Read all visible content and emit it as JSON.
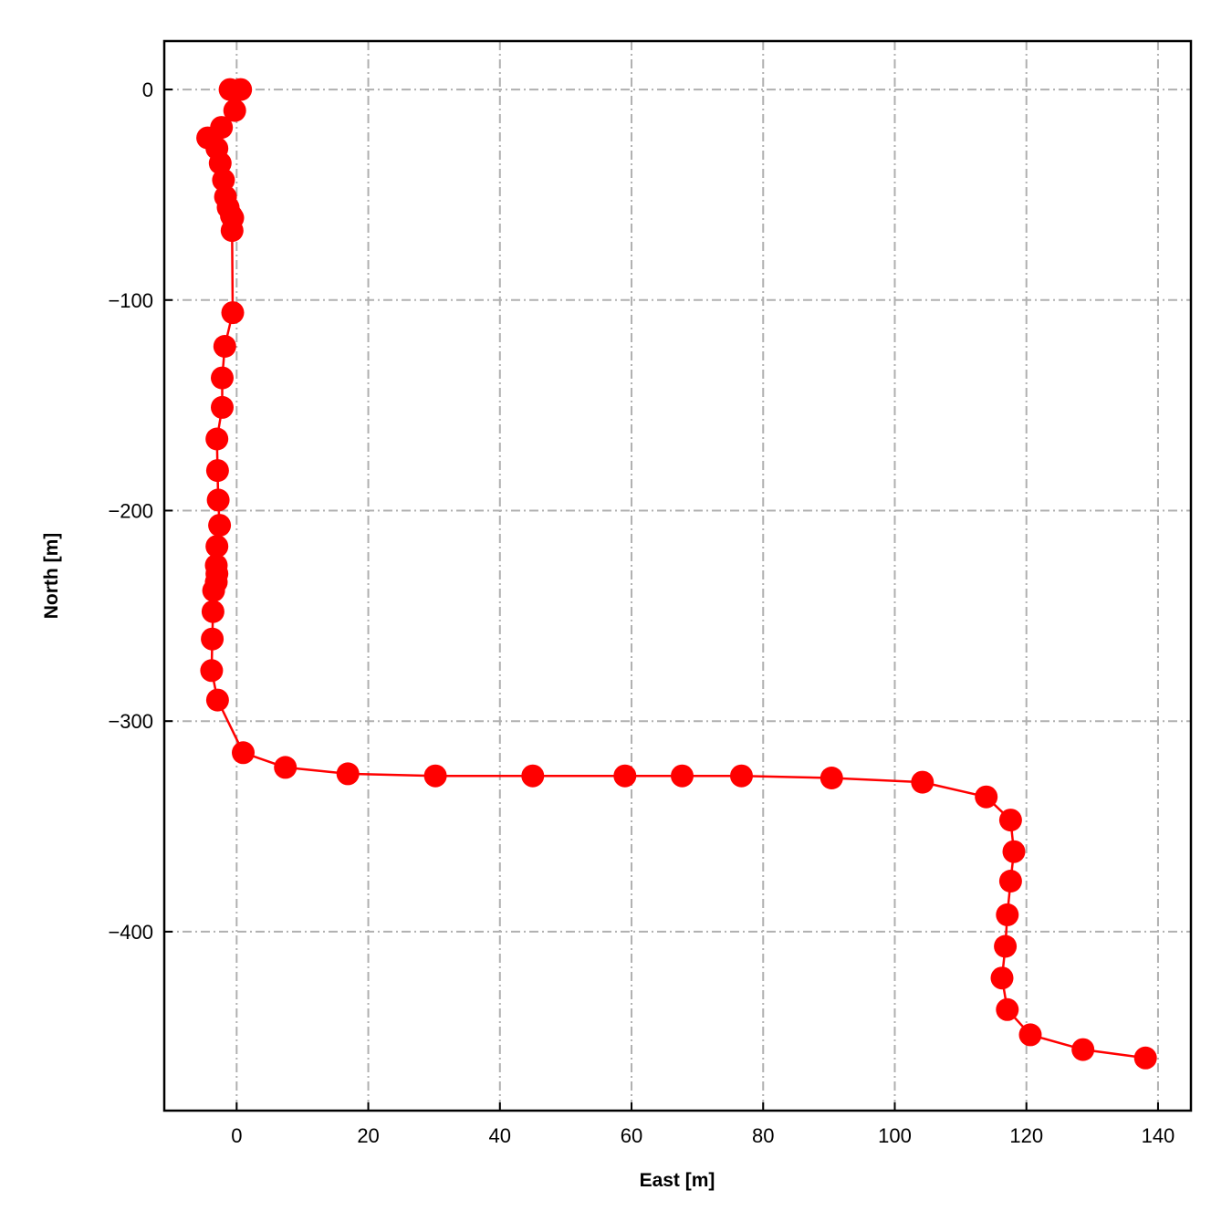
{
  "chart_data": {
    "type": "line",
    "title": "",
    "xlabel": "East [m]",
    "ylabel": "North [m]",
    "xlim": [
      -11,
      145
    ],
    "ylim": [
      -485,
      23
    ],
    "xticks": [
      0,
      20,
      40,
      60,
      80,
      100,
      120,
      140
    ],
    "xtick_labels": [
      "0",
      "20",
      "40",
      "60",
      "80",
      "100",
      "120",
      "140"
    ],
    "yticks": [
      0,
      -100,
      -200,
      -300,
      -400
    ],
    "ytick_labels": [
      "0",
      "−100",
      "−200",
      "−300",
      "−400"
    ],
    "grid": true,
    "grid_style": "dash-dot",
    "series": [
      {
        "color": "#ff0000",
        "marker": "circle",
        "x": [
          0.6,
          -1.0,
          -0.3,
          -2.3,
          -4.4,
          -3.0,
          -2.5,
          -2.0,
          -1.7,
          -1.3,
          -0.8,
          -0.6,
          -0.7,
          -0.6,
          -1.8,
          -2.2,
          -2.2,
          -3.0,
          -2.9,
          -2.8,
          -2.6,
          -3.0,
          -3.1,
          -3.0,
          -3.1,
          -3.5,
          -3.6,
          -3.7,
          -3.8,
          -2.9,
          1.0,
          7.4,
          16.9,
          30.2,
          45.0,
          59.0,
          67.7,
          76.7,
          90.4,
          104.2,
          113.9,
          117.6,
          118.1,
          117.6,
          117.1,
          116.8,
          116.3,
          117.1,
          120.6,
          128.6,
          138.1
        ],
        "y": [
          0,
          0,
          -10,
          -18,
          -23,
          -28,
          -35,
          -43,
          -51,
          -56,
          -60,
          -61,
          -67,
          -106,
          -122,
          -137,
          -151,
          -166,
          -181,
          -195,
          -207,
          -217,
          -226,
          -230,
          -234,
          -238,
          -248,
          -261,
          -276,
          -290,
          -315,
          -322,
          -325,
          -326,
          -326,
          -326,
          -326,
          -326,
          -327,
          -329,
          -336,
          -347,
          -362,
          -376,
          -392,
          -407,
          -422,
          -437,
          -449,
          -456,
          -460
        ]
      }
    ]
  }
}
